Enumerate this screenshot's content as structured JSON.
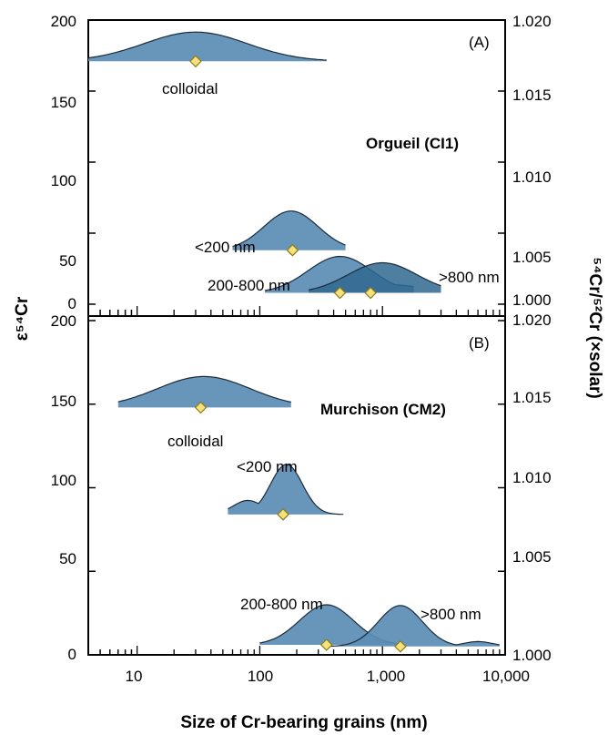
{
  "colors": {
    "fill": "#5b8db5",
    "fill_dark": "#2f6890",
    "stroke": "#1a2a3a",
    "diamond": "#f7e27a",
    "diamond_stroke": "#8a7a20"
  },
  "chart_data": {
    "type": "ridgeline-density",
    "xlabel": "Size of Cr-bearing grains (nm)",
    "x_scale": "log",
    "xlim": [
      4,
      10000
    ],
    "x_ticks": [
      "10",
      "100",
      "1,000",
      "10,000"
    ],
    "ylabel_left": "ε⁵⁴Cr",
    "ylabel_right": "⁵⁴Cr/⁵²Cr (×solar)",
    "panels": [
      {
        "tag": "(A)",
        "sample": "Orgueil (CI1)",
        "ylim": [
          0,
          200
        ],
        "y_ticks": [
          "0",
          "50",
          "100",
          "150",
          "200"
        ],
        "y2lim": [
          1.0,
          1.02
        ],
        "y2_ticks": [
          "1.000",
          "1.005",
          "1.010",
          "1.015",
          "1.020"
        ],
        "series": [
          {
            "name": "colloidal",
            "peak_x": 30,
            "base_y": 171,
            "marker_x": 30,
            "marker_y": 171
          },
          {
            "name": "<200 nm",
            "peak_x": 180,
            "base_y": 38,
            "marker_x": 185,
            "marker_y": 38
          },
          {
            "name": "200-800 nm",
            "peak_x": 450,
            "base_y": 8,
            "marker_x": 450,
            "marker_y": 8
          },
          {
            "name": ">800 nm",
            "peak_x": 1000,
            "base_y": 8,
            "marker_x": 800,
            "marker_y": 8
          }
        ]
      },
      {
        "tag": "(B)",
        "sample": "Murchison (CM2)",
        "ylim": [
          0,
          200
        ],
        "y_ticks": [
          "0",
          "50",
          "100",
          "150",
          "200"
        ],
        "y2lim": [
          1.0,
          1.02
        ],
        "y2_ticks": [
          "1.000",
          "1.005",
          "1.010",
          "1.015",
          "1.020"
        ],
        "series": [
          {
            "name": "colloidal",
            "peak_x": 35,
            "base_y": 148,
            "marker_x": 33,
            "marker_y": 148
          },
          {
            "name": "<200 nm",
            "peak_x": 170,
            "base_y": 84,
            "marker_x": 155,
            "marker_y": 84
          },
          {
            "name": "200-800 nm",
            "peak_x": 350,
            "base_y": 6,
            "marker_x": 350,
            "marker_y": 6
          },
          {
            "name": ">800 nm",
            "peak_x": 1400,
            "base_y": 5,
            "marker_x": 1400,
            "marker_y": 5
          }
        ]
      }
    ]
  }
}
